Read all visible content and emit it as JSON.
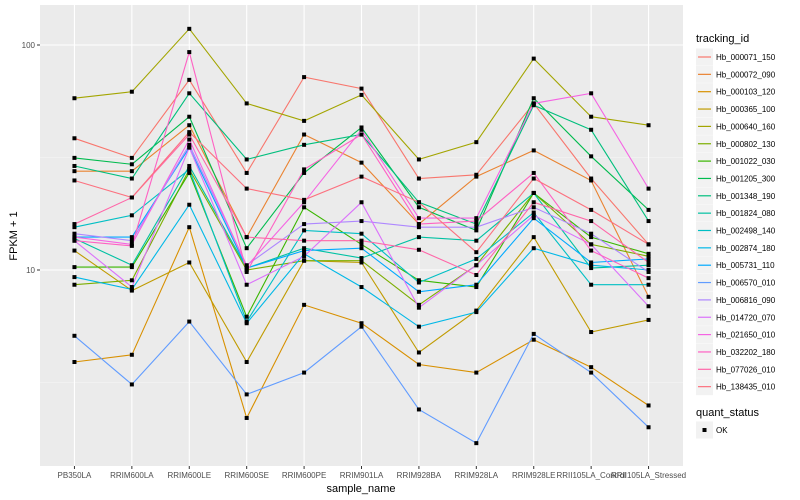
{
  "chart_data": {
    "type": "line",
    "title": "",
    "xlabel": "sample_name",
    "ylabel": "FPKM + 1",
    "y_scale": "log10",
    "ylim": [
      1.35,
      130
    ],
    "y_ticks": [
      {
        "value": 10,
        "label": "10"
      },
      {
        "value": 100,
        "label": "100"
      }
    ],
    "y_minor_gridlines": [
      3.16,
      31.6
    ],
    "grid": true,
    "categories": [
      "PB350LA",
      "RRIM600LA",
      "RRIM600LE",
      "RRIM600SE",
      "RRIM600PE",
      "RRIM901LA",
      "RRIM928BA",
      "RRIM928LA",
      "RRIM928LE",
      "RRII105LA_Control",
      "RRII105LA_Stressed"
    ],
    "series": [
      {
        "name": "Hb_000071_150",
        "color": "#F8766D",
        "values": [
          38.5,
          31.5,
          70,
          27,
          72,
          64,
          25.5,
          26.5,
          55,
          25.5,
          13
        ]
      },
      {
        "name": "Hb_000072_090",
        "color": "#EA8331",
        "values": [
          27.5,
          27.5,
          44,
          14,
          40,
          30,
          16,
          26,
          34,
          25,
          7.6
        ]
      },
      {
        "name": "Hb_000103_120",
        "color": "#D89000",
        "values": [
          3.9,
          4.2,
          15.5,
          2.2,
          7,
          5.8,
          3.8,
          3.5,
          4.9,
          3.7,
          2.5
        ]
      },
      {
        "name": "Hb_000365_100",
        "color": "#C09B00",
        "values": [
          12.2,
          8.1,
          10.8,
          3.9,
          11,
          10.8,
          4.3,
          6.6,
          14,
          5.3,
          6
        ]
      },
      {
        "name": "Hb_000640_160",
        "color": "#A3A500",
        "values": [
          58,
          62,
          118,
          55,
          46,
          60,
          31,
          37,
          87,
          48,
          44
        ]
      },
      {
        "name": "Hb_000802_130",
        "color": "#7CAE00",
        "values": [
          8.6,
          9,
          28,
          10,
          11,
          11,
          7,
          10.5,
          22,
          13,
          11.5
        ]
      },
      {
        "name": "Hb_001022_030",
        "color": "#39B600",
        "values": [
          10.3,
          10.3,
          27,
          6.2,
          19,
          13,
          9,
          8.4,
          22,
          14,
          11.8
        ]
      },
      {
        "name": "Hb_001205_300",
        "color": "#00BB4E",
        "values": [
          31.5,
          29.5,
          48,
          12.5,
          27,
          43,
          19,
          15,
          58,
          32,
          18.5
        ]
      },
      {
        "name": "Hb_001348_190",
        "color": "#00BF7D",
        "values": [
          29,
          25.5,
          61,
          31,
          36,
          40,
          20,
          16,
          54,
          42,
          16.5
        ]
      },
      {
        "name": "Hb_001824_080",
        "color": "#00C1A3",
        "values": [
          13.8,
          10.5,
          29,
          10.2,
          12.5,
          11.3,
          14,
          13.5,
          22,
          10.2,
          10.5
        ]
      },
      {
        "name": "Hb_002498_140",
        "color": "#00BFC4",
        "values": [
          15.5,
          17.5,
          28,
          5.9,
          15,
          14.5,
          8.8,
          11.2,
          18,
          8.6,
          8.6
        ]
      },
      {
        "name": "Hb_002874_180",
        "color": "#00B8E7",
        "values": [
          9.3,
          8.2,
          19.5,
          5.8,
          11.8,
          8.4,
          5.6,
          6.5,
          12.5,
          10.5,
          10
        ]
      },
      {
        "name": "Hb_005731_110",
        "color": "#00A9FF",
        "values": [
          14,
          14,
          35,
          10.2,
          12.2,
          12.5,
          8,
          8.6,
          17,
          10.8,
          11.2
        ]
      },
      {
        "name": "Hb_006570_010",
        "color": "#619CFF",
        "values": [
          5.1,
          3.1,
          5.9,
          2.8,
          3.5,
          5.6,
          2.4,
          1.7,
          5.2,
          3.5,
          2
        ]
      },
      {
        "name": "Hb_006816_090",
        "color": "#AE87FF",
        "values": [
          14.5,
          13.5,
          36,
          10.5,
          16,
          16.5,
          15.5,
          15.5,
          19,
          14.5,
          9.8
        ]
      },
      {
        "name": "Hb_014720_070",
        "color": "#DB72FB",
        "values": [
          13.5,
          8.4,
          35,
          8.6,
          11.5,
          20,
          6.8,
          10.5,
          17.5,
          13,
          6.9
        ]
      },
      {
        "name": "Hb_021650_010",
        "color": "#F564E3",
        "values": [
          14,
          13,
          38,
          10.4,
          20,
          42,
          17,
          17,
          55,
          61,
          23
        ]
      },
      {
        "name": "Hb_032202_180",
        "color": "#FF61C3",
        "values": [
          13.5,
          12.8,
          93,
          9.8,
          28,
          40,
          16,
          16.5,
          27,
          12.2,
          9.2
        ]
      },
      {
        "name": "Hb_077026_010",
        "color": "#FF66A8",
        "values": [
          16,
          21,
          40,
          14,
          13.5,
          13.5,
          12.3,
          9.5,
          20,
          16.5,
          10.8
        ]
      },
      {
        "name": "Hb_138435_010",
        "color": "#FC717F",
        "values": [
          25,
          21,
          41,
          23,
          20.5,
          26,
          20,
          12,
          25.5,
          18.5,
          13
        ]
      }
    ],
    "legend": {
      "title": "tracking_id",
      "position": "right"
    },
    "shape_legend": {
      "title": "quant_status",
      "entries": [
        {
          "label": "OK",
          "shape": "square"
        }
      ]
    }
  }
}
